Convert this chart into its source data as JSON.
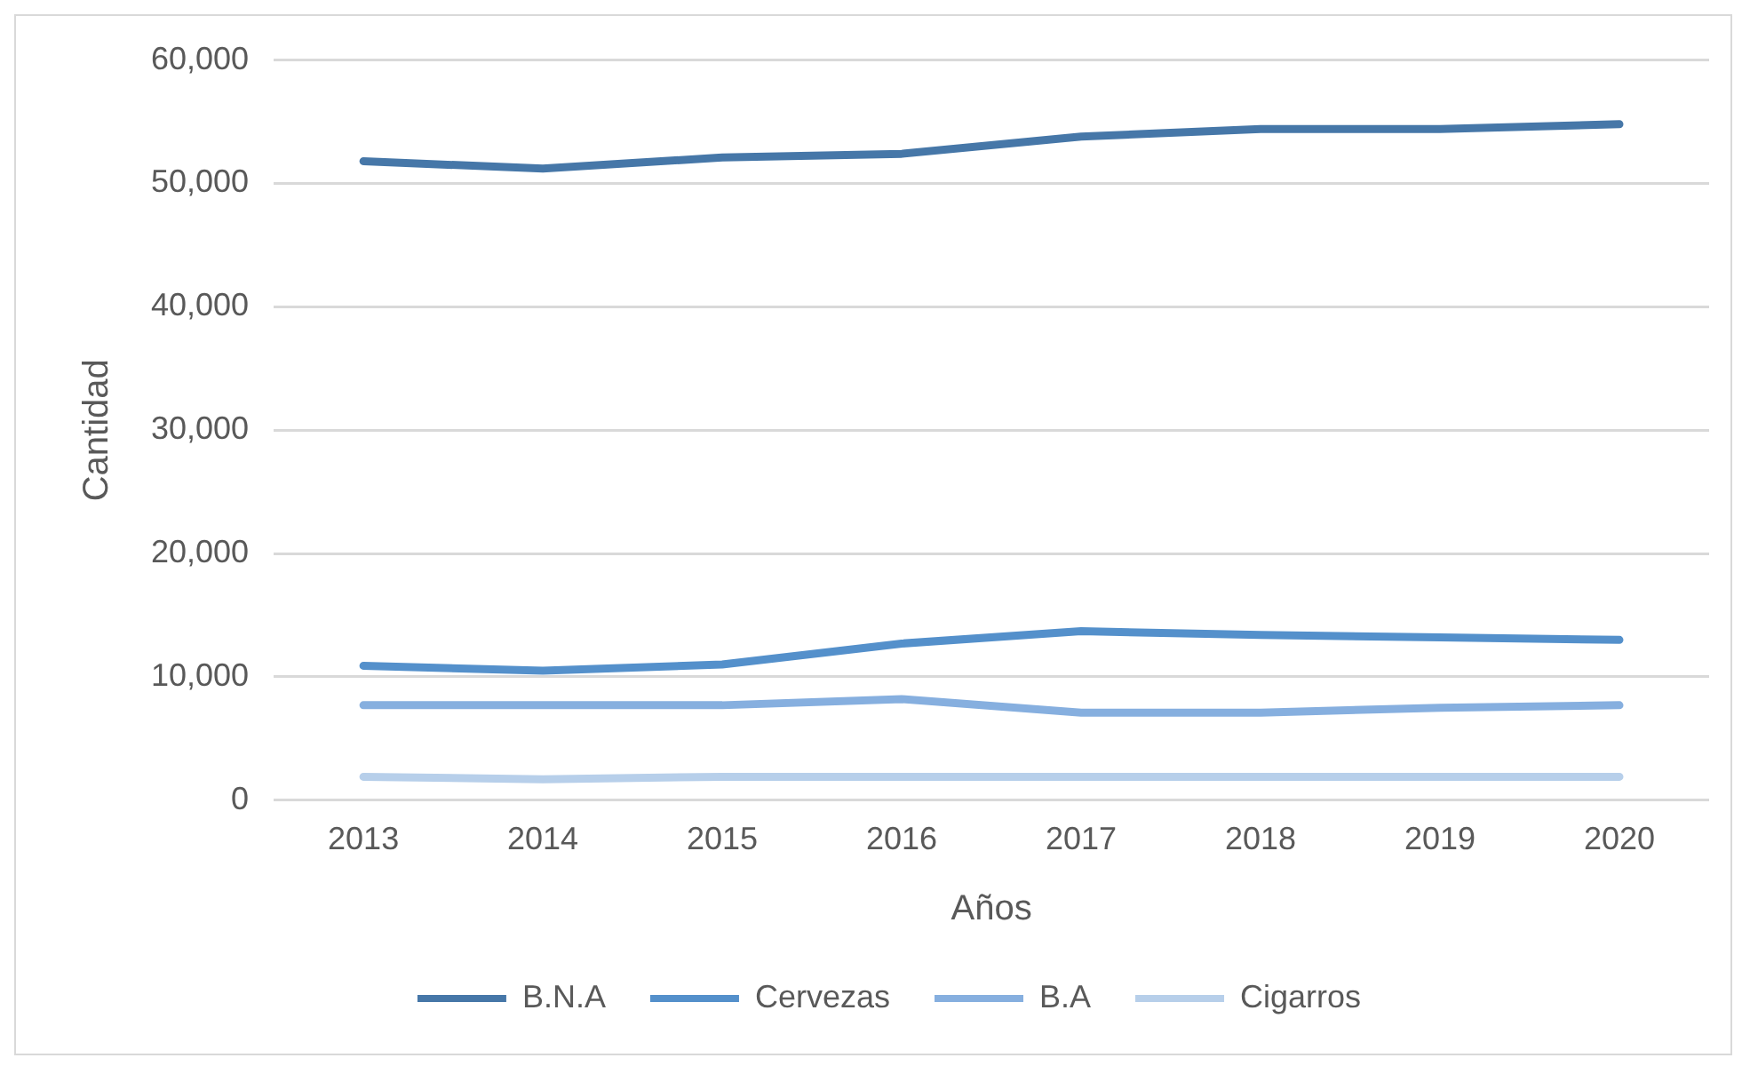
{
  "chart_data": {
    "type": "line",
    "xlabel": "Años",
    "ylabel": "Cantidad",
    "categories": [
      "2013",
      "2014",
      "2015",
      "2016",
      "2017",
      "2018",
      "2019",
      "2020"
    ],
    "series": [
      {
        "name": "B.N.A",
        "color": "#4677a8",
        "values": [
          51800,
          51200,
          52100,
          52400,
          53800,
          54400,
          54400,
          54800
        ]
      },
      {
        "name": "Cervezas",
        "color": "#5490cb",
        "values": [
          10900,
          10500,
          11000,
          12700,
          13700,
          13400,
          13200,
          13000
        ]
      },
      {
        "name": "B.A",
        "color": "#86afdf",
        "values": [
          7700,
          7700,
          7700,
          8200,
          7100,
          7100,
          7500,
          7700
        ]
      },
      {
        "name": "Cigarros",
        "color": "#b7cfea",
        "values": [
          1900,
          1700,
          1900,
          1900,
          1900,
          1900,
          1900,
          1900
        ]
      }
    ],
    "ylim": [
      0,
      60000
    ],
    "yticks": [
      0,
      {
        "value": 10000,
        "label": "10,000"
      },
      {
        "value": 20000,
        "label": "20,000"
      },
      {
        "value": 30000,
        "label": "30,000"
      },
      {
        "value": 40000,
        "label": "40,000"
      },
      {
        "value": 50000,
        "label": "50,000"
      },
      {
        "value": 60000,
        "label": "60,000"
      }
    ],
    "grid": "y",
    "legend": "bottom",
    "marker": "none",
    "line_style": "solid"
  }
}
